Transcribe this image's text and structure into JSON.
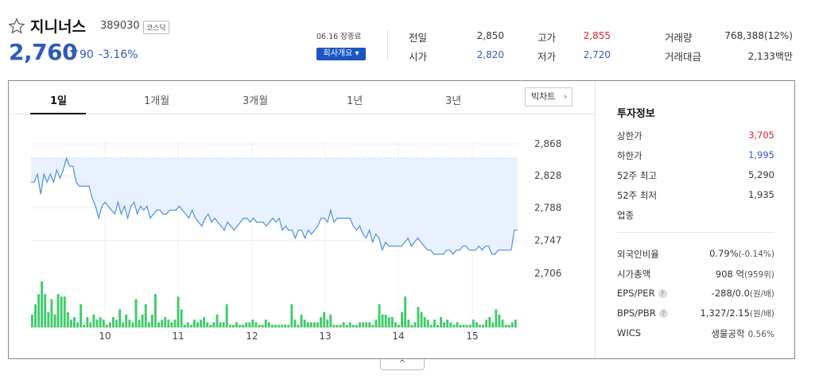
{
  "stock": {
    "name": "지니너스",
    "code": "389030",
    "market": "코스닥",
    "price": "2,760",
    "change": "90",
    "change_pct": "-3.16%",
    "date_status": "06.16 장종료",
    "company_button": "회사개요 ▾"
  },
  "quotes": [
    {
      "label": "전일",
      "value": "2,850",
      "tone": "normal"
    },
    {
      "label": "고가",
      "value": "2,855",
      "tone": "up"
    },
    {
      "label": "거래량",
      "value": "768,388(12%)",
      "tone": "normal"
    },
    {
      "label": "시가",
      "value": "2,820",
      "tone": "down"
    },
    {
      "label": "저가",
      "value": "2,720",
      "tone": "down"
    },
    {
      "label": "거래대금",
      "value": "2,133백만",
      "tone": "normal"
    }
  ],
  "tabs": [
    {
      "label": "1일",
      "active": true
    },
    {
      "label": "1개월",
      "active": false
    },
    {
      "label": "3개월",
      "active": false
    },
    {
      "label": "1년",
      "active": false
    },
    {
      "label": "3년",
      "active": false
    }
  ],
  "bigchart_label": "빅차트",
  "icons": {
    "favorite": "star-outline-icon",
    "down": "down-triangle-icon",
    "chevron": "chevron-right-icon",
    "collapse": "chevron-up-icon",
    "help": "question-icon"
  },
  "colors": {
    "down": "#2e5bba",
    "up": "#e3202e",
    "line": "#4a8fe0",
    "area": "#e8f1fd",
    "volume": "#3fcb6a"
  },
  "chart_data": {
    "type": "line",
    "y_ticks": [
      "2,868",
      "2,828",
      "2,788",
      "2,747",
      "2,706"
    ],
    "ylim": [
      2706,
      2868
    ],
    "x_ticks": [
      "10",
      "11",
      "12",
      "13",
      "14",
      "15"
    ],
    "reference_value": 2850,
    "price_series": [
      2820,
      2820,
      2830,
      2805,
      2830,
      2820,
      2830,
      2820,
      2835,
      2825,
      2835,
      2850,
      2840,
      2840,
      2820,
      2815,
      2815,
      2815,
      2815,
      2800,
      2790,
      2775,
      2790,
      2795,
      2790,
      2785,
      2780,
      2795,
      2780,
      2790,
      2775,
      2790,
      2795,
      2780,
      2790,
      2785,
      2790,
      2775,
      2780,
      2785,
      2785,
      2780,
      2780,
      2785,
      2785,
      2785,
      2790,
      2785,
      2780,
      2775,
      2785,
      2775,
      2770,
      2765,
      2775,
      2780,
      2770,
      2775,
      2770,
      2765,
      2760,
      2770,
      2765,
      2760,
      2765,
      2770,
      2775,
      2775,
      2770,
      2775,
      2770,
      2770,
      2770,
      2765,
      2770,
      2775,
      2770,
      2775,
      2760,
      2765,
      2760,
      2760,
      2750,
      2760,
      2760,
      2750,
      2760,
      2755,
      2760,
      2765,
      2775,
      2775,
      2770,
      2785,
      2770,
      2775,
      2775,
      2775,
      2775,
      2775,
      2765,
      2760,
      2765,
      2755,
      2750,
      2760,
      2745,
      2755,
      2750,
      2735,
      2745,
      2740,
      2740,
      2740,
      2740,
      2740,
      2745,
      2750,
      2740,
      2745,
      2750,
      2745,
      2740,
      2735,
      2735,
      2730,
      2730,
      2730,
      2730,
      2735,
      2735,
      2730,
      2735,
      2735,
      2740,
      2740,
      2735,
      2735,
      2735,
      2740,
      2735,
      2740,
      2740,
      2730,
      2730,
      2735,
      2735,
      2735,
      2735,
      2735,
      2760,
      2760
    ],
    "volume_series": [
      5,
      9,
      13,
      18,
      13,
      6,
      11,
      5,
      13,
      12,
      12,
      6,
      3,
      4,
      2,
      9,
      1,
      4,
      2,
      5,
      3,
      4,
      3,
      1,
      2,
      4,
      3,
      7,
      2,
      5,
      3,
      2,
      11,
      3,
      5,
      9,
      2,
      5,
      13,
      2,
      3,
      4,
      3,
      2,
      3,
      12,
      7,
      1,
      2,
      1,
      3,
      2,
      3,
      4,
      2,
      1,
      2,
      5,
      2,
      2,
      9,
      1,
      1,
      2,
      1,
      1,
      2,
      2,
      3,
      2,
      1,
      1,
      3,
      2,
      1,
      1,
      1,
      1,
      1,
      1,
      9,
      3,
      1,
      5,
      3,
      2,
      2,
      2,
      2,
      4,
      6,
      3,
      5,
      1,
      1,
      1,
      2,
      1,
      2,
      1,
      1,
      2,
      2,
      2,
      2,
      1,
      3,
      9,
      5,
      5,
      4,
      4,
      2,
      1,
      6,
      12,
      3,
      1,
      2,
      8,
      6,
      4,
      3,
      1,
      3,
      1,
      4,
      2,
      3,
      2,
      1,
      2,
      1,
      1,
      1,
      1,
      3,
      2,
      1,
      1,
      3,
      4,
      2,
      7,
      5,
      3,
      1,
      1,
      2,
      3
    ]
  },
  "investment_info": {
    "title": "투자정보",
    "rows_top": [
      {
        "label": "상한가",
        "value": "3,705",
        "tone": "up"
      },
      {
        "label": "하한가",
        "value": "1,995",
        "tone": "down"
      },
      {
        "label": "52주 최고",
        "value": "5,290",
        "tone": "normal"
      },
      {
        "label": "52주 최저",
        "value": "1,935",
        "tone": "normal"
      },
      {
        "label": "업종",
        "value": "",
        "tone": "normal"
      }
    ],
    "rows_bottom": [
      {
        "label": "외국인비율",
        "value": "0.79%",
        "sub": "(-0.14%)",
        "help": false
      },
      {
        "label": "시가총액",
        "value": "908 억",
        "sub": "(959위)",
        "help": false
      },
      {
        "label": "EPS/PER",
        "value": "-288/0.0",
        "sub": "(원/배)",
        "help": true
      },
      {
        "label": "BPS/PBR",
        "value": "1,327/2.15",
        "sub": "(원/배)",
        "help": true
      },
      {
        "label": "WICS",
        "value": "생물공학",
        "sub": "0.56%",
        "help": false
      }
    ]
  },
  "collapse_label": "^"
}
